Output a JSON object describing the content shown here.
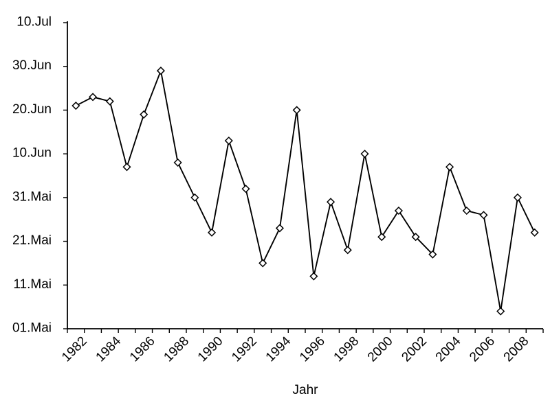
{
  "chart_data": {
    "type": "line",
    "title": "",
    "xlabel": "Jahr",
    "ylabel": "",
    "x": [
      1982,
      1983,
      1984,
      1985,
      1986,
      1987,
      1988,
      1989,
      1990,
      1991,
      1992,
      1993,
      1994,
      1995,
      1996,
      1997,
      1998,
      1999,
      2000,
      2001,
      2002,
      2003,
      2004,
      2005,
      2006,
      2007,
      2008,
      2009
    ],
    "values_date": [
      "21.Jun",
      "23.Jun",
      "22.Jun",
      "07.Jun",
      "19.Jun",
      "29.Jun",
      "08.Jun",
      "31.Mai",
      "23.Mai",
      "13.Jun",
      "02.Jun",
      "16.Mai",
      "24.Mai",
      "20.Jun",
      "13.Mai",
      "30.Mai",
      "19.Mai",
      "10.Jun",
      "22.Mai",
      "28.Mai",
      "22.Mai",
      "18.Mai",
      "07.Jun",
      "28.Mai",
      "27.Mai",
      "05.Mai",
      "31.Mai",
      "23.Mai"
    ],
    "values_days_after_01mai": [
      51,
      53,
      52,
      37,
      49,
      59,
      38,
      30,
      22,
      43,
      32,
      15,
      23,
      50,
      12,
      29,
      18,
      40,
      21,
      27,
      21,
      17,
      37,
      27,
      26,
      4,
      30,
      22
    ],
    "y_tick_labels_bottom_to_top": [
      "01.Mai",
      "11.Mai",
      "21.Mai",
      "31.Mai",
      "10.Jun",
      "20.Jun",
      "30.Jun",
      "10.Jul"
    ],
    "y_tick_interval_days": 10,
    "ylim_days_after_01mai": [
      0,
      70
    ],
    "x_tick_labels": [
      "1982",
      "1984",
      "1986",
      "1988",
      "1990",
      "1992",
      "1994",
      "1996",
      "1998",
      "2000",
      "2002",
      "2004",
      "2006",
      "2008"
    ],
    "grid": false,
    "legend": "none",
    "marker": "open-diamond",
    "colors": {
      "line": "#000000",
      "marker_fill": "#ffffff",
      "axis": "#000000",
      "text": "#000000",
      "background": "#ffffff"
    }
  }
}
